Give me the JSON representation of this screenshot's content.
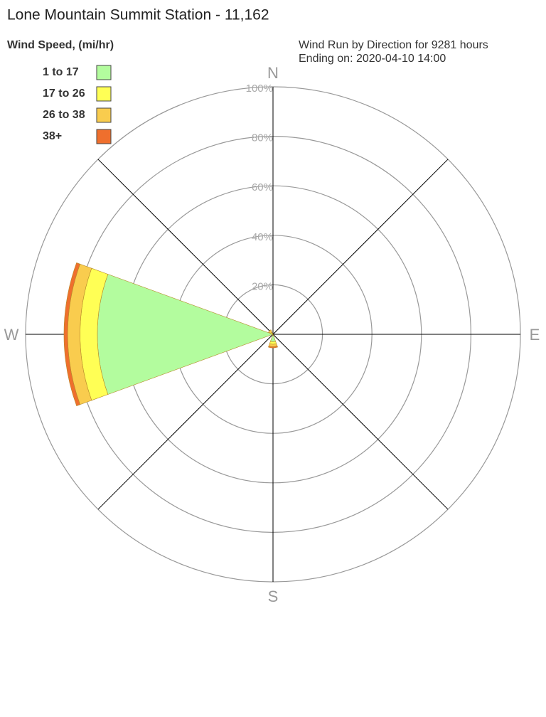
{
  "chart_data": {
    "type": "windrose",
    "title": "Lone Mountain Summit Station - 11,162",
    "legend_title": "Wind Speed, (mi/hr)",
    "subtitle": [
      "Wind Run by Direction for 9281 hours",
      "Ending on: 2020-04-10 14:00"
    ],
    "categories": [
      "N",
      null,
      "E",
      null,
      "S",
      null,
      "W",
      null
    ],
    "series": [
      {
        "name": "1 to 17",
        "color": "#b3fc9e",
        "values": [
          0,
          0,
          0,
          0,
          3,
          0,
          71,
          0
        ]
      },
      {
        "name": "17 to 26",
        "color": "#ffff55",
        "values": [
          0,
          0,
          0,
          0,
          1,
          0,
          7,
          1
        ]
      },
      {
        "name": "26 to 38",
        "color": "#f9cc4e",
        "values": [
          0,
          0,
          0,
          0,
          1,
          0,
          5,
          1
        ]
      },
      {
        "name": "38+",
        "color": "#ef6f2d",
        "values": [
          0,
          0,
          0,
          0,
          0.5,
          0,
          1.5,
          0
        ]
      }
    ],
    "rlim": [
      0,
      100
    ],
    "rticks": [
      {
        "value": 20,
        "label": "20%"
      },
      {
        "value": 40,
        "label": "40%"
      },
      {
        "value": 60,
        "label": "60%"
      },
      {
        "value": 80,
        "label": "80%"
      },
      {
        "value": 100,
        "label": "100%"
      }
    ],
    "grid": true
  }
}
